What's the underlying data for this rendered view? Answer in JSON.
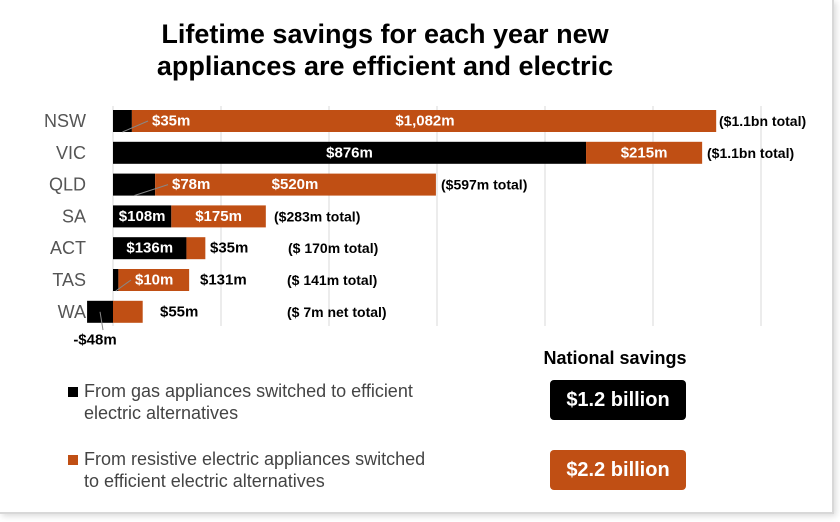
{
  "title": [
    "Lifetime savings for each year new",
    "appliances are efficient and electric"
  ],
  "colors": {
    "gas": "#000000",
    "resistive": "#c04f14",
    "grid": "#d9d9d9"
  },
  "chart_data": {
    "type": "bar",
    "orientation": "horizontal",
    "stacked": true,
    "unit": "$m",
    "categories": [
      "NSW",
      "VIC",
      "QLD",
      "SA",
      "ACT",
      "TAS",
      "WA"
    ],
    "series": [
      {
        "name": "From gas appliances switched to efficient electric alternatives",
        "values": [
          35,
          876,
          78,
          108,
          136,
          10,
          -48
        ],
        "labels": [
          "$35m",
          "$876m",
          "$78m",
          "$108m",
          "$136m",
          "$10m",
          "-$48m"
        ]
      },
      {
        "name": "From resistive electric appliances switched to efficient electric alternatives",
        "values": [
          1082,
          215,
          520,
          175,
          35,
          131,
          55
        ],
        "labels": [
          "$1,082m",
          "$215m",
          "$520m",
          "$175m",
          "$35m",
          "$131m",
          "$55m"
        ]
      }
    ],
    "totals": [
      "($1.1bn total)",
      "($1.1bn total)",
      "($597m total)",
      "($283m total)",
      "($ 170m total)",
      "($ 141m total)",
      "($ 7m net total)"
    ],
    "xlim": [
      -50,
      1200
    ],
    "grid": true,
    "grid_step": 200,
    "x_tick_labels_shown": false
  },
  "legend": [
    {
      "line1": "From gas appliances switched to efficient",
      "line2": "electric alternatives"
    },
    {
      "line1": "From resistive electric appliances switched",
      "line2": "to efficient electric alternatives"
    }
  ],
  "national": {
    "title": "National savings",
    "gas": "$1.2 billion",
    "resistive": "$2.2 billion"
  }
}
